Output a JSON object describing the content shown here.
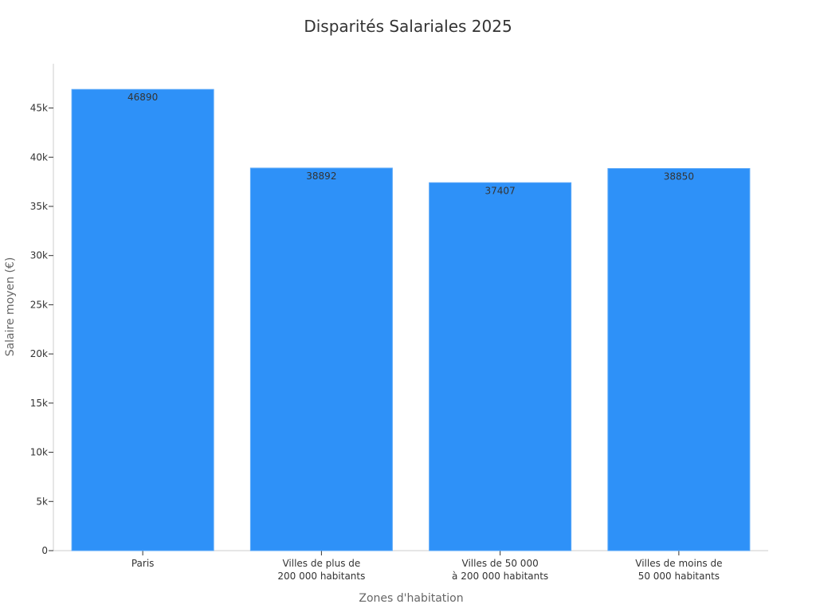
{
  "chart_data": {
    "type": "bar",
    "title": "Disparités Salariales 2025",
    "xlabel": "Zones d'habitation",
    "ylabel": "Salaire moyen (€)",
    "categories": [
      [
        "Paris"
      ],
      [
        "Villes de plus de",
        "200 000 habitants"
      ],
      [
        "Villes de 50 000",
        "à 200 000 habitants"
      ],
      [
        "Villes de moins de",
        "50 000 habitants"
      ]
    ],
    "values": [
      46890,
      38892,
      37407,
      38850
    ],
    "data_labels": [
      "46890",
      "38892",
      "37407",
      "38850"
    ],
    "ylim": [
      0,
      49500
    ],
    "yticks": [
      0,
      5000,
      10000,
      15000,
      20000,
      25000,
      30000,
      35000,
      40000,
      45000
    ],
    "ytick_labels": [
      "0",
      "5k",
      "10k",
      "15k",
      "20k",
      "25k",
      "30k",
      "35k",
      "40k",
      "45k"
    ],
    "grid": false,
    "legend": "none",
    "colors": {
      "bar": "#2e91f8",
      "bar_stroke": "#5aa8f8",
      "axis": "#cccccc"
    }
  }
}
